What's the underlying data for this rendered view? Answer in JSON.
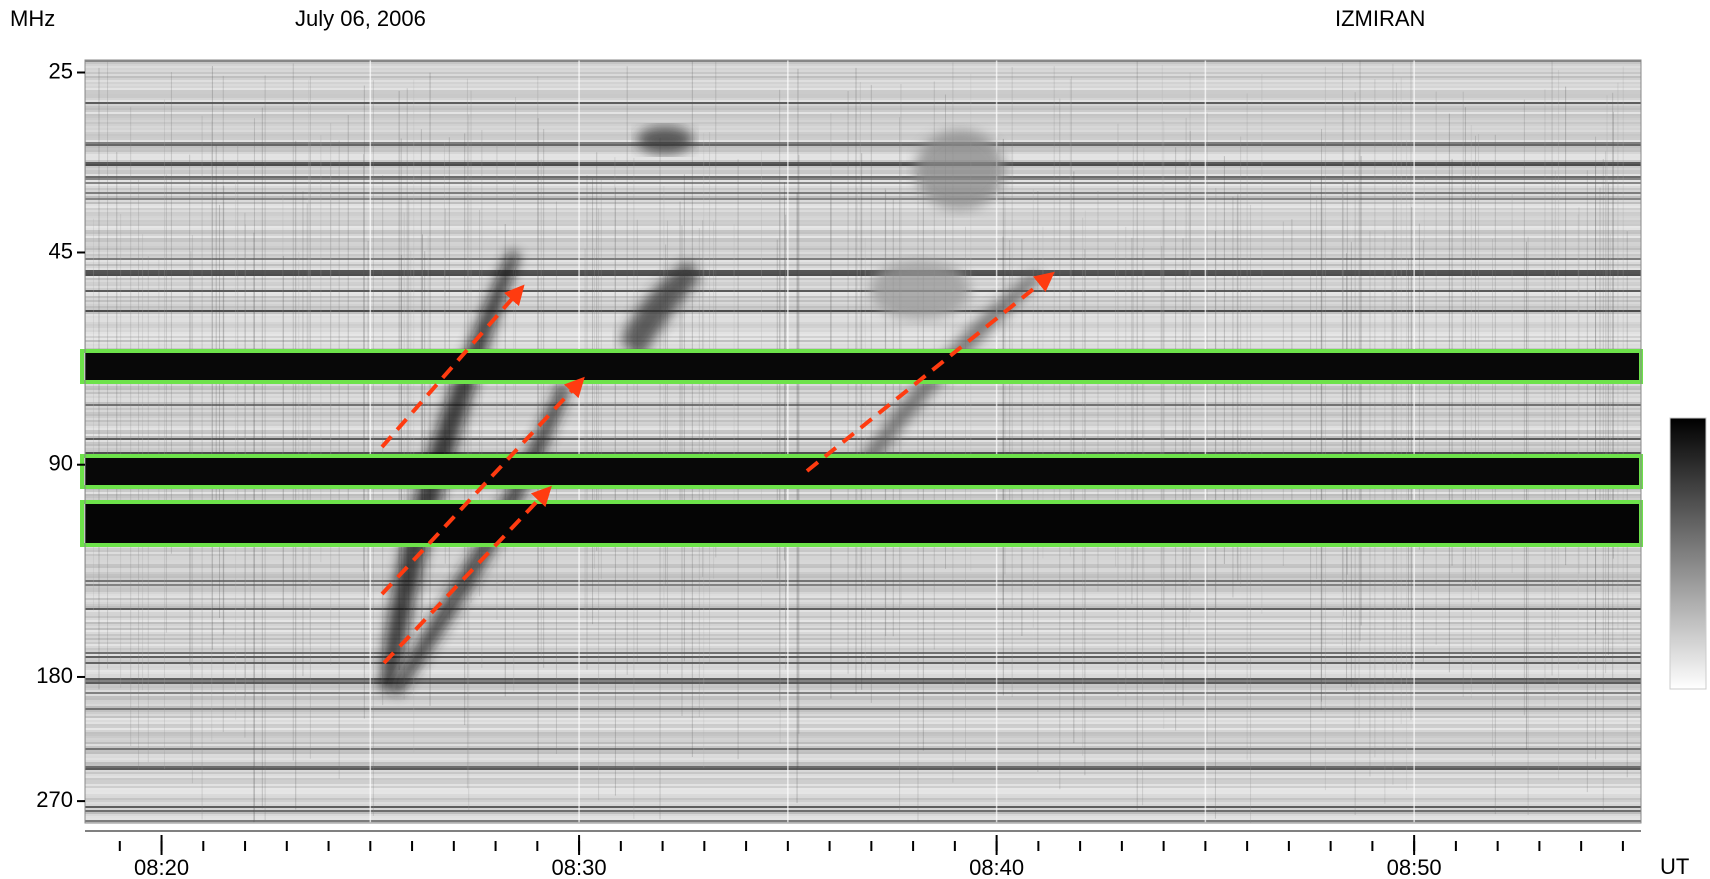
{
  "chart_data": {
    "type": "spectrogram",
    "y_unit_label": "MHz",
    "title": "July 06, 2006",
    "source": "IZMIRAN",
    "x_unit_label": "UT",
    "yscale": "log",
    "ylim": [
      24,
      290
    ],
    "yticks": [
      25,
      45,
      90,
      180,
      270
    ],
    "xlim": [
      "08:18:10",
      "08:55:26"
    ],
    "xticks": [
      "08:20",
      "08:30",
      "08:40",
      "08:50"
    ]
  }
}
